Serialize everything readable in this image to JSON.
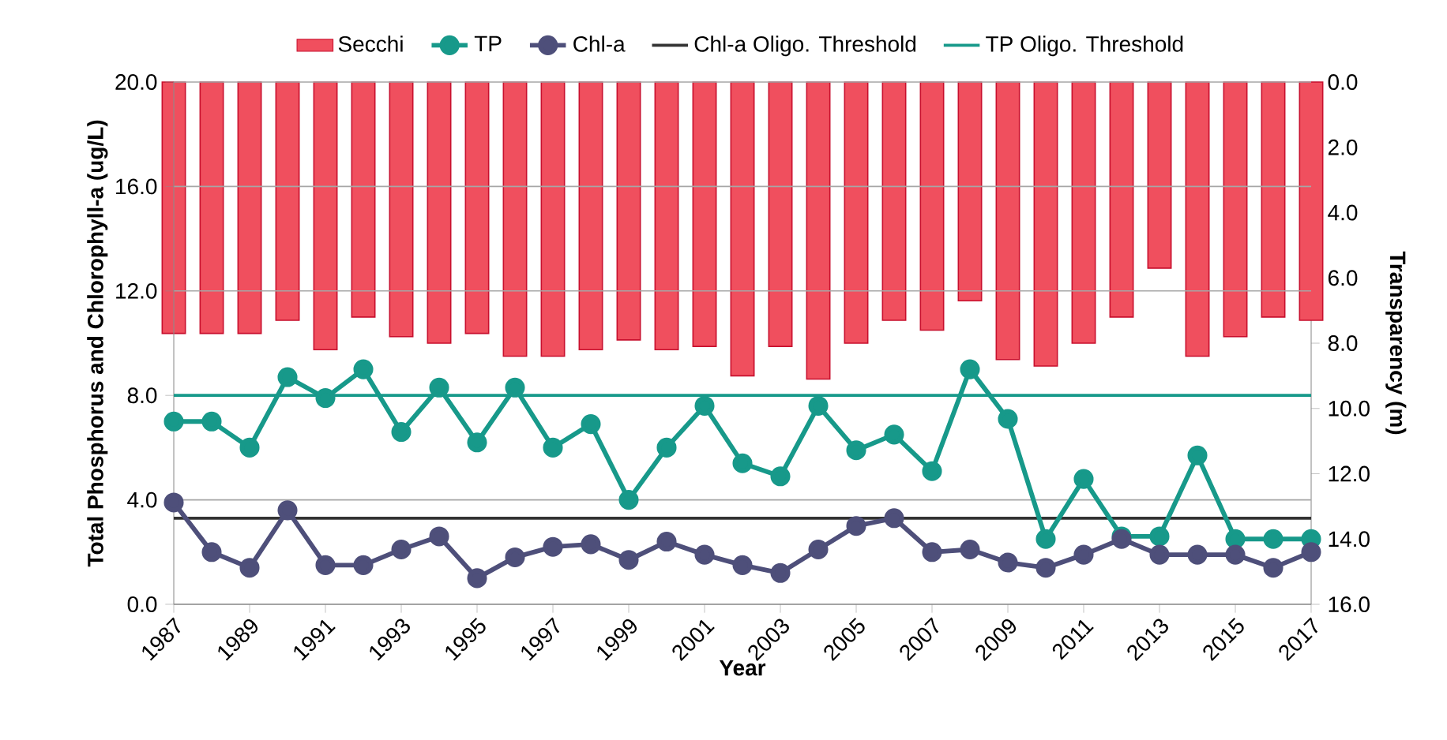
{
  "chart_data": {
    "type": "line",
    "xlabel": "Year",
    "ylabel": "Total Phosphorus and Chlorophyll-a (ug/L)",
    "y2label": "Transparency (m)",
    "categories": [
      "1987",
      null,
      "1989",
      null,
      "1991",
      null,
      "1993",
      null,
      "1995",
      null,
      "1997",
      null,
      "1999",
      null,
      "2001",
      null,
      "2003",
      null,
      "2005",
      null,
      "2007",
      null,
      "2009",
      null,
      "2011",
      null,
      "2013",
      null,
      "2015",
      null,
      "2017"
    ],
    "series": [
      {
        "name": "Secchi",
        "type": "bar",
        "axis": "y2",
        "color": "#f04f5e",
        "values": [
          7.7,
          7.7,
          7.7,
          7.3,
          8.2,
          7.2,
          7.8,
          8.0,
          7.7,
          8.4,
          8.4,
          8.2,
          7.9,
          8.2,
          8.1,
          9.0,
          8.1,
          9.1,
          8.0,
          7.3,
          7.6,
          6.7,
          8.5,
          8.7,
          8.0,
          7.2,
          5.7,
          8.4,
          7.8,
          7.2,
          7.3
        ]
      },
      {
        "name": "TP",
        "color": "#17998a",
        "values": [
          7.0,
          7.0,
          6.0,
          8.7,
          7.9,
          9.0,
          6.6,
          8.3,
          6.2,
          8.3,
          6.0,
          6.9,
          4.0,
          6.0,
          7.6,
          5.4,
          4.9,
          7.6,
          5.9,
          6.5,
          5.1,
          9.0,
          7.1,
          2.5,
          4.8,
          2.6,
          2.6,
          5.7,
          2.5,
          2.5,
          2.5
        ]
      },
      {
        "name": "Chl-a",
        "color": "#4e4f7a",
        "values": [
          3.9,
          2.0,
          1.4,
          3.6,
          1.5,
          1.5,
          2.1,
          2.6,
          1.0,
          1.8,
          2.2,
          2.3,
          1.7,
          2.4,
          1.9,
          1.5,
          1.2,
          2.1,
          3.0,
          3.3,
          2.0,
          2.1,
          1.6,
          1.4,
          1.9,
          2.5,
          1.9,
          1.9,
          1.9,
          1.4,
          2.0
        ]
      }
    ],
    "ylim": [
      0,
      20
    ],
    "yticks": [
      {
        "value": 0,
        "label": "0.0"
      },
      {
        "value": 4,
        "label": "4.0"
      },
      {
        "value": 8,
        "label": "8.0"
      },
      {
        "value": 12,
        "label": "12.0"
      },
      {
        "value": 16,
        "label": "16.0"
      },
      {
        "value": 20,
        "label": "20.0"
      }
    ],
    "y2lim": [
      16,
      0
    ],
    "y2ticks": [
      {
        "value": 0,
        "label": "0.0"
      },
      {
        "value": 2,
        "label": "2.0"
      },
      {
        "value": 4,
        "label": "4.0"
      },
      {
        "value": 6,
        "label": "6.0"
      },
      {
        "value": 8,
        "label": "8.0"
      },
      {
        "value": 10,
        "label": "10.0"
      },
      {
        "value": 12,
        "label": "12.0"
      },
      {
        "value": 14,
        "label": "14.0"
      },
      {
        "value": 16,
        "label": "16.0"
      }
    ],
    "ref_lines": [
      {
        "axis": "y",
        "value": 3.3,
        "label": "Chl-a Oligo. Threshold",
        "color": "#333333"
      },
      {
        "axis": "y",
        "value": 8.0,
        "label": "TP Oligo. Threshold",
        "color": "#17998a"
      }
    ],
    "grid": "y",
    "legend": "top",
    "marker": "circle"
  }
}
